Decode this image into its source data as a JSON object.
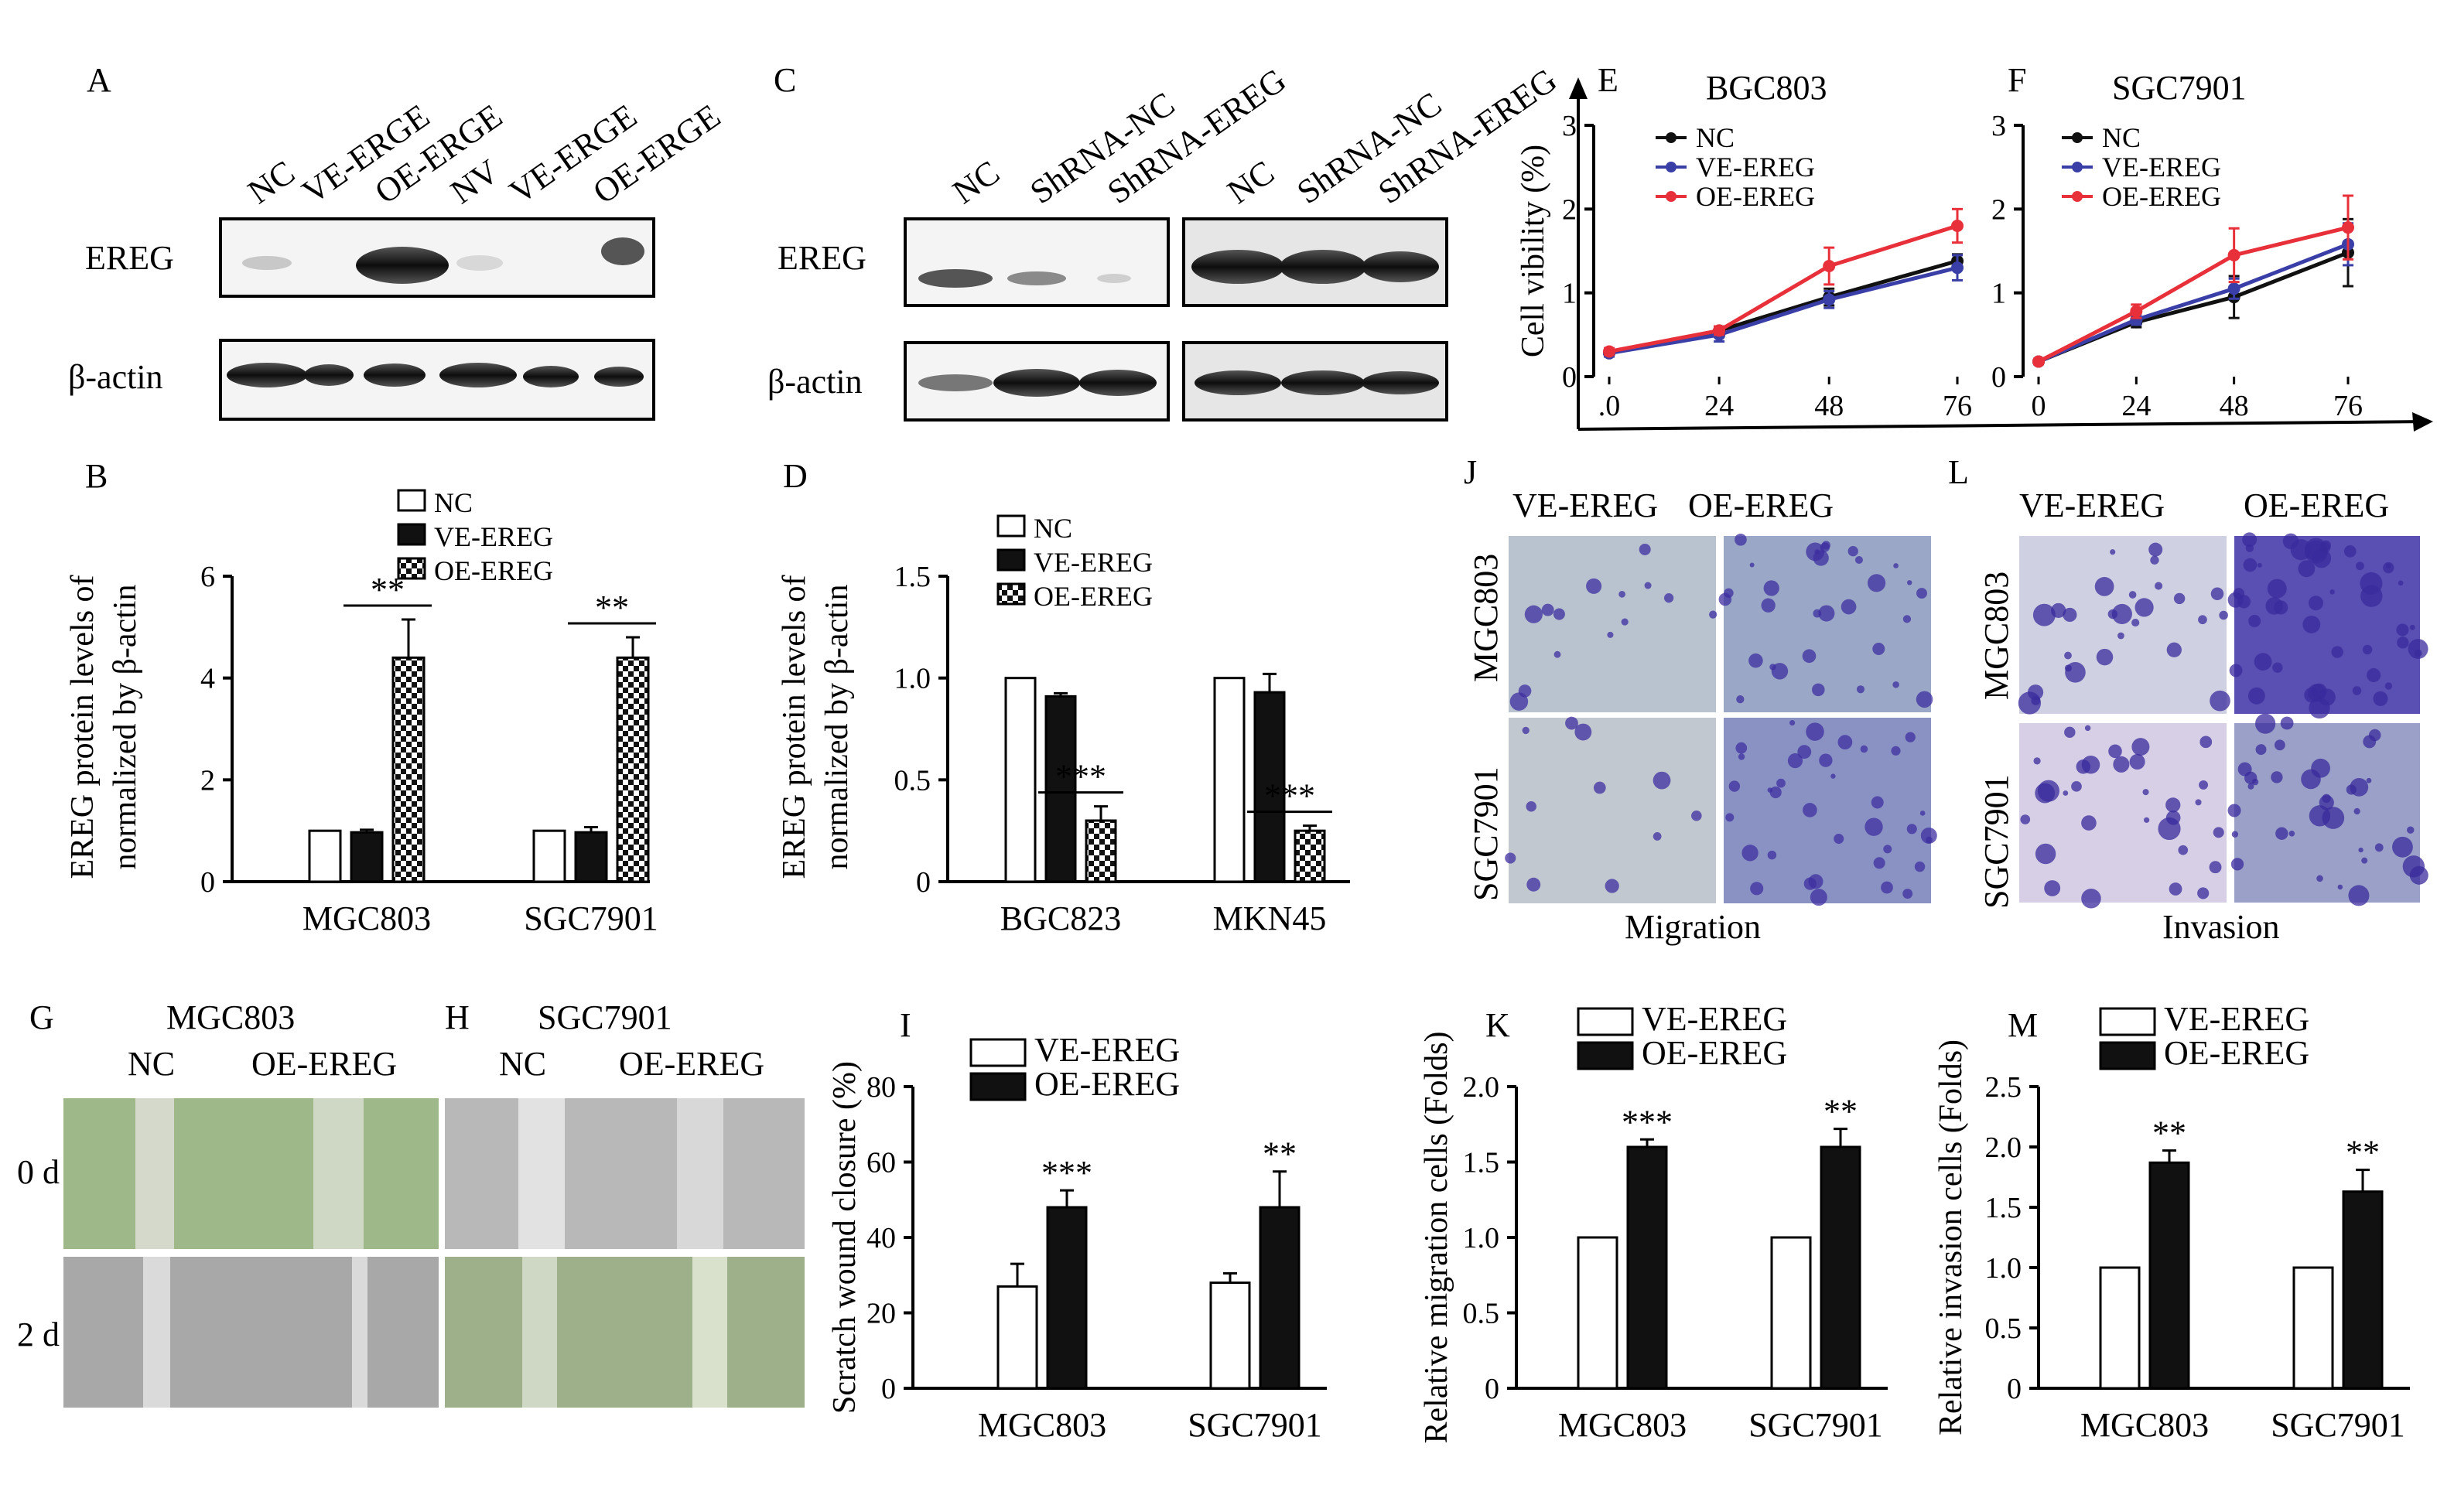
{
  "panels": {
    "A": {
      "letter": "A",
      "lanes": [
        "NC",
        "VE-ERGE",
        "OE-ERGE",
        "NV",
        "VE-ERGE",
        "OE-ERGE"
      ],
      "rows": [
        "EREG",
        "β-actin"
      ]
    },
    "C": {
      "letter": "C",
      "lanes": [
        "NC",
        "ShRNA-NC",
        "ShRNA-EREG",
        "NC",
        "ShRNA-NC",
        "ShRNA-EREG"
      ],
      "rows": [
        "EREG",
        "β-actin"
      ]
    },
    "J": {
      "letter": "J",
      "cols": [
        "VE-EREG",
        "OE-EREG"
      ],
      "rows": [
        "MGC803",
        "SGC7901"
      ],
      "caption": "Migration"
    },
    "L": {
      "letter": "L",
      "cols": [
        "VE-EREG",
        "OE-EREG"
      ],
      "rows": [
        "MGC803",
        "SGC7901"
      ],
      "caption": "Invasion"
    },
    "G": {
      "letter": "G",
      "title": "MGC803",
      "cols": [
        "NC",
        "OE-EREG"
      ],
      "rows": [
        "0 d",
        "2 d"
      ]
    },
    "H": {
      "letter": "H",
      "title": "SGC7901",
      "cols": [
        "NC",
        "OE-EREG"
      ]
    }
  },
  "colors": {
    "oe_line": "#e8303a",
    "ve_line": "#3a3fa8",
    "nc_line": "#111111",
    "crystal_violet": "#4b3aa8",
    "scratch_green": "#8fbf6a"
  },
  "chart_data": [
    {
      "id": "B",
      "letter": "B",
      "type": "bar",
      "ylabel": [
        "EREG protein levels of",
        "normalized by β-actin"
      ],
      "ylim": [
        0,
        6
      ],
      "yticks": [
        "0",
        "2",
        "4",
        "6"
      ],
      "categories": [
        "MGC803",
        "SGC7901"
      ],
      "series": [
        {
          "name": "NC",
          "fill": "white",
          "values": [
            1.0,
            1.0
          ],
          "errors": [
            0,
            0
          ]
        },
        {
          "name": "VE-EREG",
          "fill": "black",
          "values": [
            0.97,
            0.97
          ],
          "errors": [
            0.05,
            0.1
          ]
        },
        {
          "name": "OE-EREG",
          "fill": "check",
          "values": [
            4.4,
            4.4
          ],
          "errors": [
            0.75,
            0.4
          ]
        }
      ],
      "significance": [
        {
          "category": 0,
          "label": "**"
        },
        {
          "category": 1,
          "label": "**"
        }
      ],
      "legend": "top-right"
    },
    {
      "id": "D",
      "letter": "D",
      "type": "bar",
      "ylabel": [
        "EREG protein levels of",
        "normalized by β-actin"
      ],
      "ylim": [
        0,
        1.5
      ],
      "yticks": [
        "0",
        "0.5",
        "1.0",
        "1.5"
      ],
      "categories": [
        "BGC823",
        "MKN45"
      ],
      "series": [
        {
          "name": "NC",
          "fill": "white",
          "values": [
            1.0,
            1.0
          ],
          "errors": [
            0,
            0
          ]
        },
        {
          "name": "VE-EREG",
          "fill": "black",
          "values": [
            0.91,
            0.93
          ],
          "errors": [
            0.015,
            0.09
          ]
        },
        {
          "name": "OE-EREG",
          "fill": "check",
          "values": [
            0.3,
            0.25
          ],
          "errors": [
            0.07,
            0.025
          ]
        }
      ],
      "significance": [
        {
          "category": 0,
          "label": "***"
        },
        {
          "category": 1,
          "label": "***"
        }
      ],
      "legend": "top-right"
    },
    {
      "id": "E",
      "letter": "E",
      "type": "line",
      "title": "BGC803",
      "ylabel": "Cell vibility (%)",
      "x": [
        0,
        24,
        48,
        76
      ],
      "xticks": [
        ".0",
        "24",
        "48",
        "76"
      ],
      "ylim": [
        0,
        3
      ],
      "yticks": [
        "0",
        "1",
        "2",
        "3"
      ],
      "series": [
        {
          "name": "NC",
          "values": [
            0.28,
            0.55,
            0.95,
            1.38
          ],
          "errors": [
            0.04,
            0.05,
            0.1,
            0.08
          ]
        },
        {
          "name": "VE-EREG",
          "values": [
            0.28,
            0.5,
            0.92,
            1.3
          ],
          "errors": [
            0.04,
            0.08,
            0.1,
            0.15
          ]
        },
        {
          "name": "OE-EREG",
          "values": [
            0.3,
            0.55,
            1.32,
            1.8
          ],
          "errors": [
            0.04,
            0.05,
            0.22,
            0.2
          ]
        }
      ],
      "legend": "top-left"
    },
    {
      "id": "F",
      "letter": "F",
      "type": "line",
      "title": "SGC7901",
      "x": [
        0,
        24,
        48,
        76
      ],
      "xticks": [
        "0",
        "24",
        "48",
        "76"
      ],
      "ylim": [
        0,
        3
      ],
      "yticks": [
        "0",
        "1",
        "2",
        "3"
      ],
      "series": [
        {
          "name": "NC",
          "values": [
            0.18,
            0.65,
            0.95,
            1.48
          ],
          "errors": [
            0.03,
            0.06,
            0.25,
            0.4
          ]
        },
        {
          "name": "VE-EREG",
          "values": [
            0.18,
            0.68,
            1.05,
            1.58
          ],
          "errors": [
            0.03,
            0.06,
            0.12,
            0.25
          ]
        },
        {
          "name": "OE-EREG",
          "values": [
            0.18,
            0.78,
            1.45,
            1.78
          ],
          "errors": [
            0.03,
            0.08,
            0.32,
            0.38
          ]
        }
      ],
      "legend": "top-left"
    },
    {
      "id": "I",
      "letter": "I",
      "type": "bar",
      "ylabel": "Scratch wound closure (%)",
      "ylim": [
        0,
        80
      ],
      "yticks": [
        "0",
        "20",
        "40",
        "60",
        "80"
      ],
      "categories": [
        "MGC803",
        "SGC7901"
      ],
      "series": [
        {
          "name": "VE-EREG",
          "fill": "white",
          "values": [
            27,
            28
          ],
          "errors": [
            6,
            2.5
          ]
        },
        {
          "name": "OE-EREG",
          "fill": "black",
          "values": [
            48,
            48
          ],
          "errors": [
            4.5,
            9.5
          ]
        }
      ],
      "significance": [
        {
          "category": 0,
          "label": "***"
        },
        {
          "category": 1,
          "label": "**"
        }
      ],
      "legend": "top-left"
    },
    {
      "id": "K",
      "letter": "K",
      "type": "bar",
      "ylabel": "Relative migration cells (Folds)",
      "ylim": [
        0,
        2.0
      ],
      "yticks": [
        "0",
        "0.5",
        "1.0",
        "1.5",
        "2.0"
      ],
      "categories": [
        "MGC803",
        "SGC7901"
      ],
      "series": [
        {
          "name": "VE-EREG",
          "fill": "white",
          "values": [
            1.0,
            1.0
          ],
          "errors": [
            0,
            0
          ]
        },
        {
          "name": "OE-EREG",
          "fill": "black",
          "values": [
            1.6,
            1.6
          ],
          "errors": [
            0.05,
            0.12
          ]
        }
      ],
      "significance": [
        {
          "category": 0,
          "label": "***"
        },
        {
          "category": 1,
          "label": "**"
        }
      ],
      "legend": "top-left"
    },
    {
      "id": "M",
      "letter": "M",
      "type": "bar",
      "ylabel": "Relative invasion cells (Folds)",
      "ylim": [
        0,
        2.5
      ],
      "yticks": [
        "0",
        "0.5",
        "1.0",
        "1.5",
        "2.0",
        "2.5"
      ],
      "categories": [
        "MGC803",
        "SGC7901"
      ],
      "series": [
        {
          "name": "VE-EREG",
          "fill": "white",
          "values": [
            1.0,
            1.0
          ],
          "errors": [
            0,
            0
          ]
        },
        {
          "name": "OE-EREG",
          "fill": "black",
          "values": [
            1.87,
            1.63
          ],
          "errors": [
            0.1,
            0.18
          ]
        }
      ],
      "significance": [
        {
          "category": 0,
          "label": "**"
        },
        {
          "category": 1,
          "label": "**"
        }
      ],
      "legend": "top-left"
    }
  ]
}
